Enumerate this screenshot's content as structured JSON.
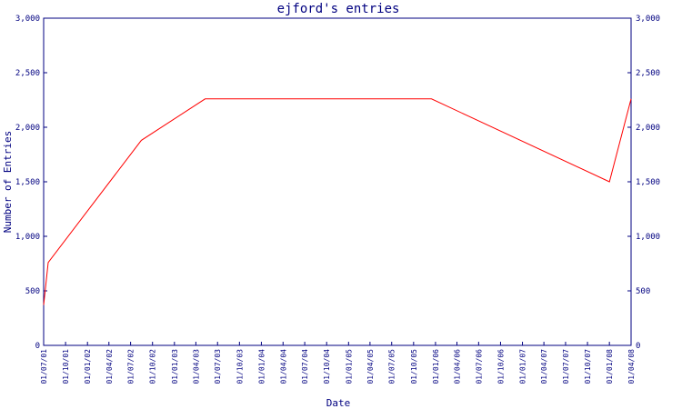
{
  "chart_data": {
    "type": "line",
    "title": "ejford's entries",
    "xlabel": "Date",
    "ylabel": "Number of Entries",
    "ylim": [
      0,
      3000
    ],
    "y_ticks": [
      0,
      500,
      1000,
      1500,
      2000,
      2500,
      3000
    ],
    "y_tick_labels": [
      "0",
      "500",
      "1,000",
      "1,500",
      "2,000",
      "2,500",
      "3,000"
    ],
    "x_tick_labels": [
      "01/07/01",
      "01/10/01",
      "01/01/02",
      "01/04/02",
      "01/07/02",
      "01/10/02",
      "01/01/03",
      "01/04/03",
      "01/07/03",
      "01/10/03",
      "01/01/04",
      "01/04/04",
      "01/07/04",
      "01/10/04",
      "01/01/05",
      "01/04/05",
      "01/07/05",
      "01/10/05",
      "01/01/06",
      "01/04/06",
      "01/07/06",
      "01/10/06",
      "01/01/07",
      "01/04/07",
      "01/07/07",
      "01/10/07",
      "01/01/08",
      "01/04/08"
    ],
    "grid": false,
    "colors": {
      "line": "#ff0000",
      "axis": "#000080",
      "text": "#000080"
    },
    "series": [
      {
        "x": [
          "2001-07-01",
          "2001-07-20",
          "2002-08-15",
          "2003-05-10",
          "2005-12-15",
          "2008-01-01",
          "2008-04-01"
        ],
        "values": [
          370,
          760,
          1880,
          2260,
          2260,
          1500,
          2260
        ]
      }
    ]
  }
}
